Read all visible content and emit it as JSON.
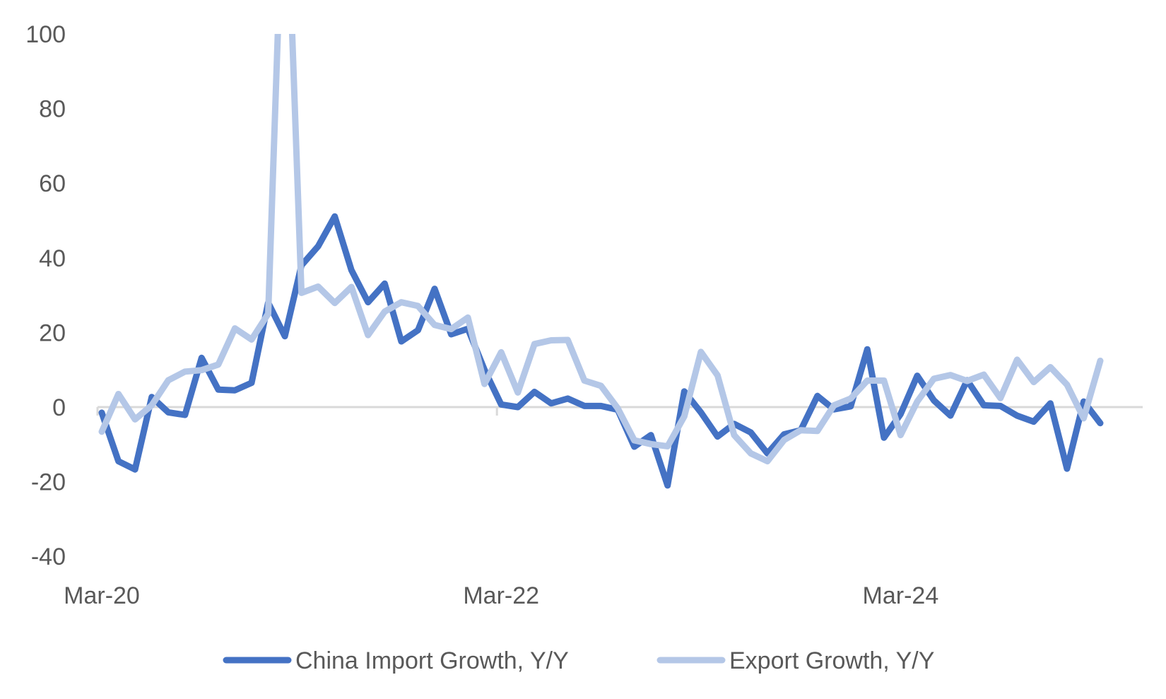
{
  "chart_data": {
    "type": "line",
    "title": "",
    "xlabel": "",
    "ylabel": "",
    "ylim": [
      -40,
      100
    ],
    "yticks": [
      100,
      80,
      60,
      40,
      20,
      0,
      -20,
      -40
    ],
    "ytick_labels": [
      "100",
      "80",
      "60",
      "40",
      "20",
      "0",
      "-20",
      "-40"
    ],
    "xtick_labels": [
      "Mar-20",
      "Mar-22",
      "Mar-24"
    ],
    "xtick_indices": [
      0,
      24,
      48
    ],
    "grid": false,
    "zero_line": true,
    "legend_position": "bottom",
    "x": [
      "Mar-20",
      "Apr-20",
      "May-20",
      "Jun-20",
      "Jul-20",
      "Aug-20",
      "Sep-20",
      "Oct-20",
      "Nov-20",
      "Dec-20",
      "Jan-21",
      "Feb-21",
      "Mar-21",
      "Apr-21",
      "May-21",
      "Jun-21",
      "Jul-21",
      "Aug-21",
      "Sep-21",
      "Oct-21",
      "Nov-21",
      "Dec-21",
      "Jan-22",
      "Feb-22",
      "Mar-22",
      "Apr-22",
      "May-22",
      "Jun-22",
      "Jul-22",
      "Aug-22",
      "Sep-22",
      "Oct-22",
      "Nov-22",
      "Dec-22",
      "Jan-23",
      "Feb-23",
      "Mar-23",
      "Apr-23",
      "May-23",
      "Jun-23",
      "Jul-23",
      "Aug-23",
      "Sep-23",
      "Oct-23",
      "Nov-23",
      "Dec-23",
      "Jan-24",
      "Feb-24",
      "Mar-24",
      "Apr-24",
      "May-24",
      "Jun-24",
      "Jul-24",
      "Aug-24",
      "Sep-24",
      "Oct-24",
      "Nov-24",
      "Dec-24",
      "Jan-25",
      "Feb-25",
      "Mar-25"
    ],
    "series": [
      {
        "name": "China Import Growth, Y/Y",
        "color": "#4472C4",
        "values": [
          -1.5,
          -14.5,
          -16.7,
          2.7,
          -1.4,
          -2.1,
          13.2,
          4.7,
          4.5,
          6.5,
          28.0,
          19.0,
          38.0,
          43.1,
          51.1,
          36.7,
          28.1,
          33.1,
          17.6,
          20.6,
          31.7,
          19.5,
          21.0,
          10.0,
          0.7,
          0.0,
          4.1,
          1.0,
          2.3,
          0.3,
          0.3,
          -0.7,
          -10.6,
          -7.5,
          -21.0,
          4.2,
          -1.4,
          -7.9,
          -4.5,
          -6.8,
          -12.4,
          -7.3,
          -6.2,
          3.0,
          -0.6,
          0.2,
          15.5,
          -8.2,
          -1.9,
          8.4,
          1.8,
          -2.3,
          7.2,
          0.5,
          0.3,
          -2.3,
          -3.9,
          1.0,
          -16.5,
          1.5,
          -4.3
        ]
      },
      {
        "name": "Export Growth, Y/Y",
        "color": "#B4C7E7",
        "values": [
          -6.6,
          3.5,
          -3.3,
          0.5,
          7.2,
          9.5,
          9.9,
          11.4,
          21.1,
          18.1,
          25.0,
          154.9,
          30.6,
          32.3,
          27.9,
          32.2,
          19.3,
          25.6,
          28.1,
          27.1,
          22.0,
          20.9,
          24.0,
          6.2,
          14.7,
          3.9,
          16.9,
          17.9,
          18.0,
          7.1,
          5.7,
          -0.3,
          -8.9,
          -9.9,
          -10.5,
          -2.5,
          14.8,
          8.5,
          -7.5,
          -12.4,
          -14.5,
          -8.8,
          -6.2,
          -6.4,
          0.5,
          2.3,
          7.1,
          7.1,
          -7.5,
          1.5,
          7.6,
          8.6,
          7.0,
          8.7,
          2.4,
          12.7,
          6.7,
          10.7,
          6.0,
          -3.0,
          12.4
        ]
      }
    ]
  },
  "legend": {
    "items": [
      {
        "label": "China Import Growth, Y/Y",
        "color": "#4472C4"
      },
      {
        "label": "Export Growth, Y/Y",
        "color": "#B4C7E7"
      }
    ]
  },
  "style": {
    "axis_color": "#D9D9D9",
    "text_color": "#595959"
  }
}
